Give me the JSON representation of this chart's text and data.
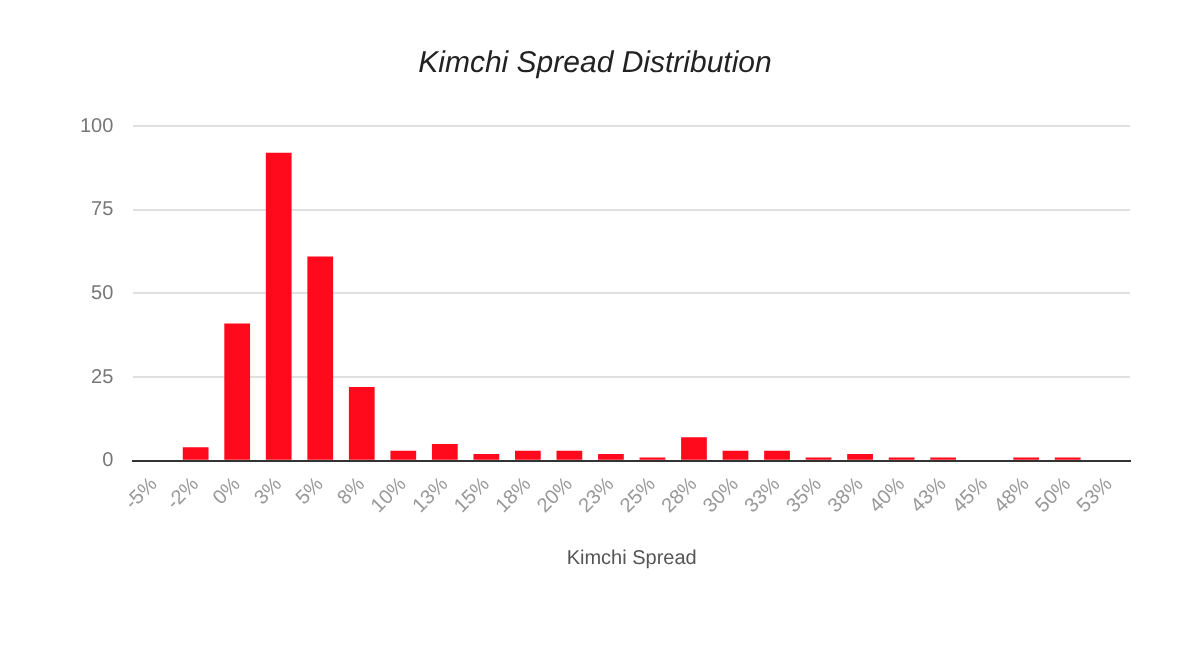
{
  "chart_data": {
    "type": "bar",
    "title": "Kimchi Spread Distribution",
    "xlabel": "Kimchi Spread",
    "categories": [
      "-5%",
      "-2%",
      "0%",
      "3%",
      "5%",
      "8%",
      "10%",
      "13%",
      "15%",
      "18%",
      "20%",
      "23%",
      "25%",
      "28%",
      "30%",
      "33%",
      "35%",
      "38%",
      "40%",
      "43%",
      "45%",
      "48%",
      "50%",
      "53%"
    ],
    "values": [
      0,
      4,
      41,
      92,
      61,
      22,
      3,
      5,
      2,
      3,
      3,
      2,
      1,
      7,
      3,
      3,
      1,
      2,
      1,
      1,
      0,
      1,
      1,
      0
    ],
    "color": "#ff0a1c",
    "ylim": [
      0,
      100
    ],
    "yticks": [
      0,
      25,
      50,
      75,
      100
    ],
    "grid": "y",
    "legend": false
  }
}
